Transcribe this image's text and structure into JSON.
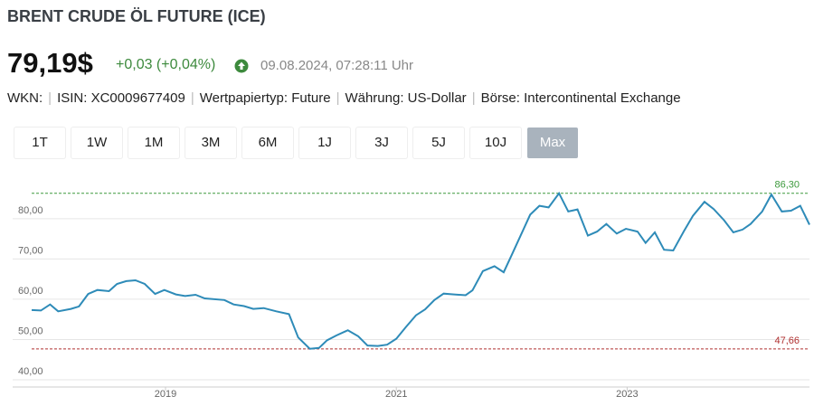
{
  "header": {
    "title": "BRENT CRUDE ÖL FUTURE (ICE)",
    "price": "79,19$",
    "change": "+0,03 (+0,04%)",
    "timestamp": "09.08.2024, 07:28:11 Uhr",
    "info": [
      "WKN:",
      "ISIN: XC0009677409",
      "Wertpapiertyp: Future",
      "Währung: US-Dollar",
      "Börse: Intercontinental Exchange"
    ]
  },
  "range_buttons": {
    "labels": [
      "1T",
      "1W",
      "1M",
      "3M",
      "6M",
      "1J",
      "3J",
      "5J",
      "10J",
      "Max"
    ],
    "active": "Max"
  },
  "chart_data": {
    "type": "line",
    "color": "#2e8bb8",
    "x": [
      2017.84,
      2017.92,
      2018.0,
      2018.07,
      2018.18,
      2018.25,
      2018.33,
      2018.41,
      2018.51,
      2018.58,
      2018.66,
      2018.74,
      2018.82,
      2018.91,
      2018.99,
      2019.09,
      2019.17,
      2019.26,
      2019.34,
      2019.51,
      2019.59,
      2019.68,
      2019.76,
      2019.85,
      2019.96,
      2020.07,
      2020.15,
      2020.25,
      2020.33,
      2020.4,
      2020.48,
      2020.58,
      2020.67,
      2020.75,
      2020.84,
      2020.92,
      2021.0,
      2021.08,
      2021.17,
      2021.25,
      2021.33,
      2021.41,
      2021.5,
      2021.6,
      2021.66,
      2021.75,
      2021.85,
      2021.93,
      2022.0,
      2022.08,
      2022.16,
      2022.24,
      2022.32,
      2022.41,
      2022.49,
      2022.57,
      2022.66,
      2022.74,
      2022.82,
      2022.91,
      2022.99,
      2023.09,
      2023.16,
      2023.24,
      2023.32,
      2023.4,
      2023.49,
      2023.57,
      2023.67,
      2023.75,
      2023.84,
      2023.92,
      2024.0,
      2024.07,
      2024.17,
      2024.25,
      2024.34,
      2024.42,
      2024.5,
      2024.58
    ],
    "values": [
      57.3,
      57.2,
      58.7,
      57,
      57.6,
      58.2,
      61.3,
      62.3,
      62,
      63.8,
      64.5,
      64.7,
      63.8,
      61.3,
      62.3,
      61.2,
      60.8,
      61.1,
      60.2,
      59.8,
      58.7,
      58.3,
      57.6,
      57.8,
      57,
      56.3,
      50.5,
      47.7,
      47.9,
      49.8,
      51,
      52.3,
      50.8,
      48.5,
      48.4,
      48.7,
      50.2,
      53,
      56,
      57.5,
      59.8,
      61.4,
      61.2,
      61,
      62.2,
      67,
      68.2,
      66.7,
      71,
      76,
      81,
      83.2,
      82.8,
      86.3,
      81.8,
      82.3,
      75.8,
      76.8,
      78.7,
      76.3,
      77.5,
      76.8,
      74,
      76.6,
      72.3,
      72.1,
      76.8,
      80.7,
      84.2,
      82.4,
      79.6,
      76.6,
      77.3,
      78.7,
      81.8,
      86,
      81.8,
      82,
      83.2,
      78.5
    ],
    "xlim": [
      2017.84,
      2024.58
    ],
    "xticks": [
      2019,
      2021,
      2023
    ],
    "ylim": [
      38.2,
      90.3
    ],
    "yticks": [
      {
        "value": 40,
        "label": "40,00"
      },
      {
        "value": 50,
        "label": "50,00"
      },
      {
        "value": 60,
        "label": "60,00"
      },
      {
        "value": 70,
        "label": "70,00"
      },
      {
        "value": 80,
        "label": "80,00"
      }
    ],
    "grid": true,
    "reference_lines": [
      {
        "value": 86.3,
        "label": "86,30",
        "color": "#3d9a3d"
      },
      {
        "value": 47.66,
        "label": "47,66",
        "color": "#b03030"
      }
    ]
  }
}
